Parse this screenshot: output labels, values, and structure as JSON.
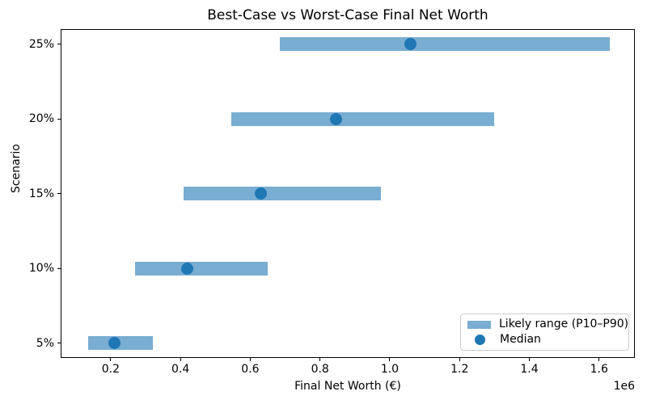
{
  "figure": {
    "title": "Best-Case vs Worst-Case Final Net Worth",
    "xlabel": "Final Net Worth (€)",
    "ylabel": "Scenario",
    "offset_text": "1e6"
  },
  "legend": {
    "range_label": "Likely range (P10–P90)",
    "median_label": "Median"
  },
  "colors": {
    "range_bar": "#79add2",
    "median_dot": "#1f77b4",
    "axis": "#000000",
    "legend_border": "#cccccc"
  },
  "chart_data": {
    "type": "bar",
    "orientation": "horizontal",
    "title": "Best-Case vs Worst-Case Final Net Worth",
    "xlabel": "Final Net Worth (€)",
    "ylabel": "Scenario",
    "categories": [
      "5%",
      "10%",
      "15%",
      "20%",
      "25%"
    ],
    "series": [
      {
        "name": "P10",
        "values": [
          135000,
          270000,
          410000,
          545000,
          685000
        ]
      },
      {
        "name": "Median",
        "values": [
          210000,
          420000,
          630000,
          845000,
          1060000
        ]
      },
      {
        "name": "P90",
        "values": [
          320000,
          650000,
          975000,
          1300000,
          1630000
        ]
      }
    ],
    "xlim": [
      56500,
      1702500
    ],
    "xticks": [
      200000,
      400000,
      600000,
      800000,
      1000000,
      1200000,
      1400000,
      1600000
    ],
    "xtick_labels": [
      "0.2",
      "0.4",
      "0.6",
      "0.8",
      "1.0",
      "1.2",
      "1.4",
      "1.6"
    ],
    "x_offset_multiplier": "1e6",
    "grid": false,
    "legend_position": "lower right",
    "legend_entries": [
      "Likely range (P10–P90)",
      "Median"
    ]
  }
}
